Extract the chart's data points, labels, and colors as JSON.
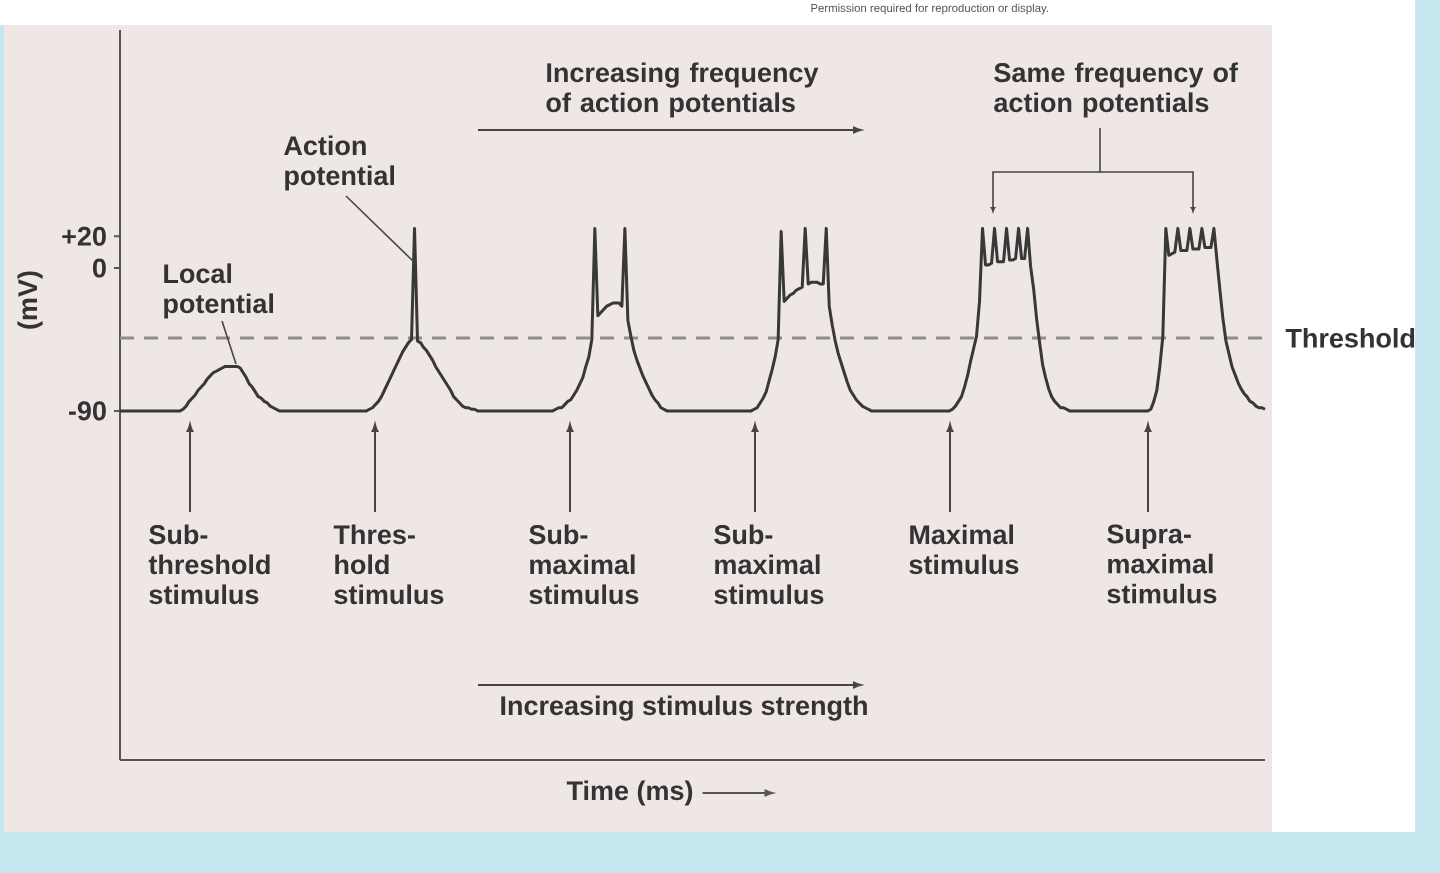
{
  "chart_data": {
    "type": "line",
    "xlabel": "Time (ms)",
    "ylabel": "(mV)",
    "categories": [
      null,
      null,
      null,
      null,
      null,
      null,
      null,
      null,
      null,
      null,
      null,
      null,
      null,
      null,
      null,
      null,
      null,
      null,
      null,
      null,
      null,
      null,
      null,
      null,
      null,
      null,
      null,
      null,
      null,
      null,
      null,
      null,
      null,
      null,
      null,
      null,
      null,
      null,
      null,
      null,
      null,
      null,
      null,
      null,
      null,
      null,
      null,
      null,
      null,
      null,
      null,
      null,
      null,
      null,
      null,
      null,
      null,
      null,
      null,
      null,
      null,
      null,
      null,
      null,
      null,
      null,
      null,
      null,
      null,
      null,
      null,
      null,
      null,
      null,
      null,
      null,
      null,
      null,
      null,
      null,
      null,
      null,
      null,
      null,
      null,
      null,
      null,
      null,
      null,
      null,
      null,
      null,
      null,
      null,
      null,
      null,
      null,
      null,
      null,
      null,
      null,
      null,
      null,
      null,
      null,
      null,
      null,
      null,
      null,
      null,
      null,
      null,
      null,
      null,
      null,
      null,
      null,
      null,
      null,
      null,
      null,
      null,
      null,
      null,
      null,
      null,
      null,
      null,
      null,
      null,
      null,
      null,
      null,
      null,
      null,
      null,
      null,
      null,
      null,
      null,
      null,
      null,
      null,
      null,
      null,
      null,
      null,
      null,
      null,
      null,
      null,
      null,
      null,
      null,
      null,
      null,
      null,
      null,
      null,
      null,
      null,
      null,
      null,
      null,
      null,
      null,
      null,
      null,
      null,
      null,
      null,
      null,
      null,
      null,
      null,
      null,
      null,
      null,
      null,
      null,
      null,
      null,
      null,
      null,
      null,
      null,
      null,
      null,
      null,
      null,
      null,
      null,
      null,
      null,
      null,
      null,
      null,
      null,
      null,
      null,
      null,
      null,
      null,
      null,
      null,
      null,
      null,
      null,
      null,
      null,
      null,
      null,
      null,
      null,
      null,
      null,
      null,
      null,
      null,
      null,
      null,
      null,
      null,
      null,
      null,
      null,
      null,
      null,
      null,
      null,
      null,
      null,
      null,
      null,
      null,
      null,
      null,
      null,
      null,
      null,
      null,
      null,
      null,
      null,
      null,
      null,
      null,
      null,
      null,
      null,
      null,
      null,
      null,
      null,
      null,
      null,
      null,
      null,
      null,
      null,
      null,
      null,
      null,
      null,
      null,
      null,
      null,
      null,
      null,
      null,
      null,
      null,
      null,
      null,
      null,
      null,
      null,
      null,
      null,
      null,
      null,
      null,
      null,
      null,
      null,
      null,
      null,
      null,
      null,
      null,
      null,
      null,
      null,
      null,
      null,
      null,
      null,
      null,
      null,
      null,
      null,
      null,
      null,
      null,
      null,
      null,
      null,
      null,
      null,
      null,
      null,
      null,
      null,
      null,
      null,
      null,
      null,
      null,
      null,
      null,
      null,
      null,
      null,
      null,
      null,
      null,
      null,
      null,
      null,
      null,
      null,
      null,
      null,
      null,
      null,
      null,
      null,
      null,
      null,
      null,
      null,
      null,
      null,
      null,
      null,
      null,
      null,
      null,
      null,
      null,
      null,
      null,
      null,
      null,
      null,
      null,
      null,
      null,
      null,
      null,
      null,
      null,
      null,
      null,
      null,
      null,
      null,
      null,
      null,
      null,
      null,
      null,
      null,
      null,
      null,
      null,
      null,
      null,
      null,
      null,
      null,
      null
    ],
    "series": [
      {
        "color": "#383838",
        "line_style": "solid",
        "values": [
          -90,
          -90,
          -90,
          -90,
          -90,
          -90,
          -90,
          -90,
          -90,
          -90,
          -90,
          -90,
          -90,
          -90,
          -90,
          -90,
          -90,
          -90,
          -90,
          -90,
          -90,
          -89,
          -87,
          -84,
          -82,
          -80,
          -77,
          -75,
          -73,
          -70,
          -68,
          -66,
          -65,
          -64,
          -63,
          -62,
          -62,
          -62,
          -62,
          -62,
          -63,
          -66,
          -69,
          -73,
          -75,
          -78,
          -81,
          -82,
          -84,
          -85,
          -87,
          -88,
          -89,
          -90,
          -90,
          -90,
          -90,
          -90,
          -90,
          -90,
          -90,
          -90,
          -90,
          -90,
          -90,
          -90,
          -90,
          -90,
          -90,
          -90,
          -90,
          -90,
          -90,
          -90,
          -90,
          -90,
          -90,
          -90,
          -90,
          -90,
          -90,
          -90,
          -90,
          -89,
          -88,
          -86,
          -84,
          -81,
          -77,
          -73,
          -69,
          -65,
          -61,
          -57,
          -53,
          -50,
          -47,
          -45,
          25,
          -46,
          -47,
          -50,
          -52,
          -55,
          -58,
          -62,
          -65,
          -68,
          -71,
          -74,
          -77,
          -81,
          -83,
          -85,
          -87,
          -88,
          -88,
          -89,
          -89,
          -90,
          -90,
          -90,
          -90,
          -90,
          -90,
          -90,
          -90,
          -90,
          -90,
          -90,
          -90,
          -90,
          -90,
          -90,
          -90,
          -90,
          -90,
          -90,
          -90,
          -90,
          -90,
          -90,
          -90,
          -90,
          -90,
          -89,
          -88,
          -88,
          -86,
          -84,
          -83,
          -80,
          -77,
          -73,
          -69,
          -62,
          -56,
          -45,
          25,
          -30,
          -28,
          -26,
          -24,
          -23,
          -22,
          -22,
          -22,
          -24,
          25,
          -33,
          -43,
          -52,
          -58,
          -63,
          -68,
          -72,
          -76,
          -80,
          -83,
          -85,
          -88,
          -89,
          -90,
          -90,
          -90,
          -90,
          -90,
          -90,
          -90,
          -90,
          -90,
          -90,
          -90,
          -90,
          -90,
          -90,
          -90,
          -90,
          -90,
          -90,
          -90,
          -90,
          -90,
          -90,
          -90,
          -90,
          -90,
          -90,
          -90,
          -90,
          -90,
          -89,
          -88,
          -85,
          -82,
          -78,
          -71,
          -64,
          -56,
          -45,
          23,
          -21,
          -19,
          -17,
          -16,
          -14,
          -13,
          -12,
          25,
          -10,
          -9,
          -9,
          -9,
          -10,
          -10,
          25,
          -24,
          -36,
          -46,
          -54,
          -60,
          -66,
          -72,
          -77,
          -80,
          -83,
          -85,
          -87,
          -88,
          -89,
          -90,
          -90,
          -90,
          -90,
          -90,
          -90,
          -90,
          -90,
          -90,
          -90,
          -90,
          -90,
          -90,
          -90,
          -90,
          -90,
          -90,
          -90,
          -90,
          -90,
          -90,
          -90,
          -90,
          -90,
          -90,
          -90,
          -90,
          -89,
          -87,
          -84,
          -81,
          -75,
          -68,
          -59,
          -51,
          -43,
          -21,
          25,
          2,
          2,
          3,
          25,
          4,
          4,
          4,
          25,
          5,
          5,
          6,
          25,
          6,
          6,
          25,
          1,
          -13,
          -32,
          -47,
          -61,
          -69,
          -76,
          -81,
          -84,
          -86,
          -88,
          -88,
          -89,
          -90,
          -90,
          -90,
          -90,
          -90,
          -90,
          -90,
          -90,
          -90,
          -90,
          -90,
          -90,
          -90,
          -90,
          -90,
          -90,
          -90,
          -90,
          -90,
          -90,
          -90,
          -90,
          -90,
          -90,
          -90,
          -90,
          -90,
          -89,
          -84,
          -77,
          -62,
          -43,
          25,
          8,
          9,
          10,
          25,
          11,
          11,
          11,
          25,
          12,
          12,
          12,
          25,
          13,
          13,
          13,
          25,
          5,
          -14,
          -32,
          -46,
          -54,
          -62,
          -67,
          -72,
          -76,
          -79,
          -81,
          -84,
          -85,
          -87,
          -88,
          -88,
          -89
        ]
      }
    ],
    "ylim": [
      -310,
      150
    ],
    "yticks": [
      -90,
      0,
      {
        "value": 20,
        "label": "+20"
      }
    ],
    "tick_labels": "y",
    "ref_lines": [
      {
        "axis": "y",
        "value": -44,
        "label": "Threshold",
        "color": "#8e8e8e",
        "line_style": "dashed"
      }
    ],
    "annotations": [
      "Permission required for reproduction or display.",
      "Increasing frequency of action potentials",
      "Same frequency of action potentials",
      "Action potential",
      "Local potential",
      "Sub-threshold stimulus",
      "Thres-hold stimulus",
      "Sub-maximal stimulus",
      "Sub-maximal stimulus",
      "Maximal stimulus",
      "Supra-maximal stimulus",
      "Increasing stimulus strength"
    ]
  }
}
